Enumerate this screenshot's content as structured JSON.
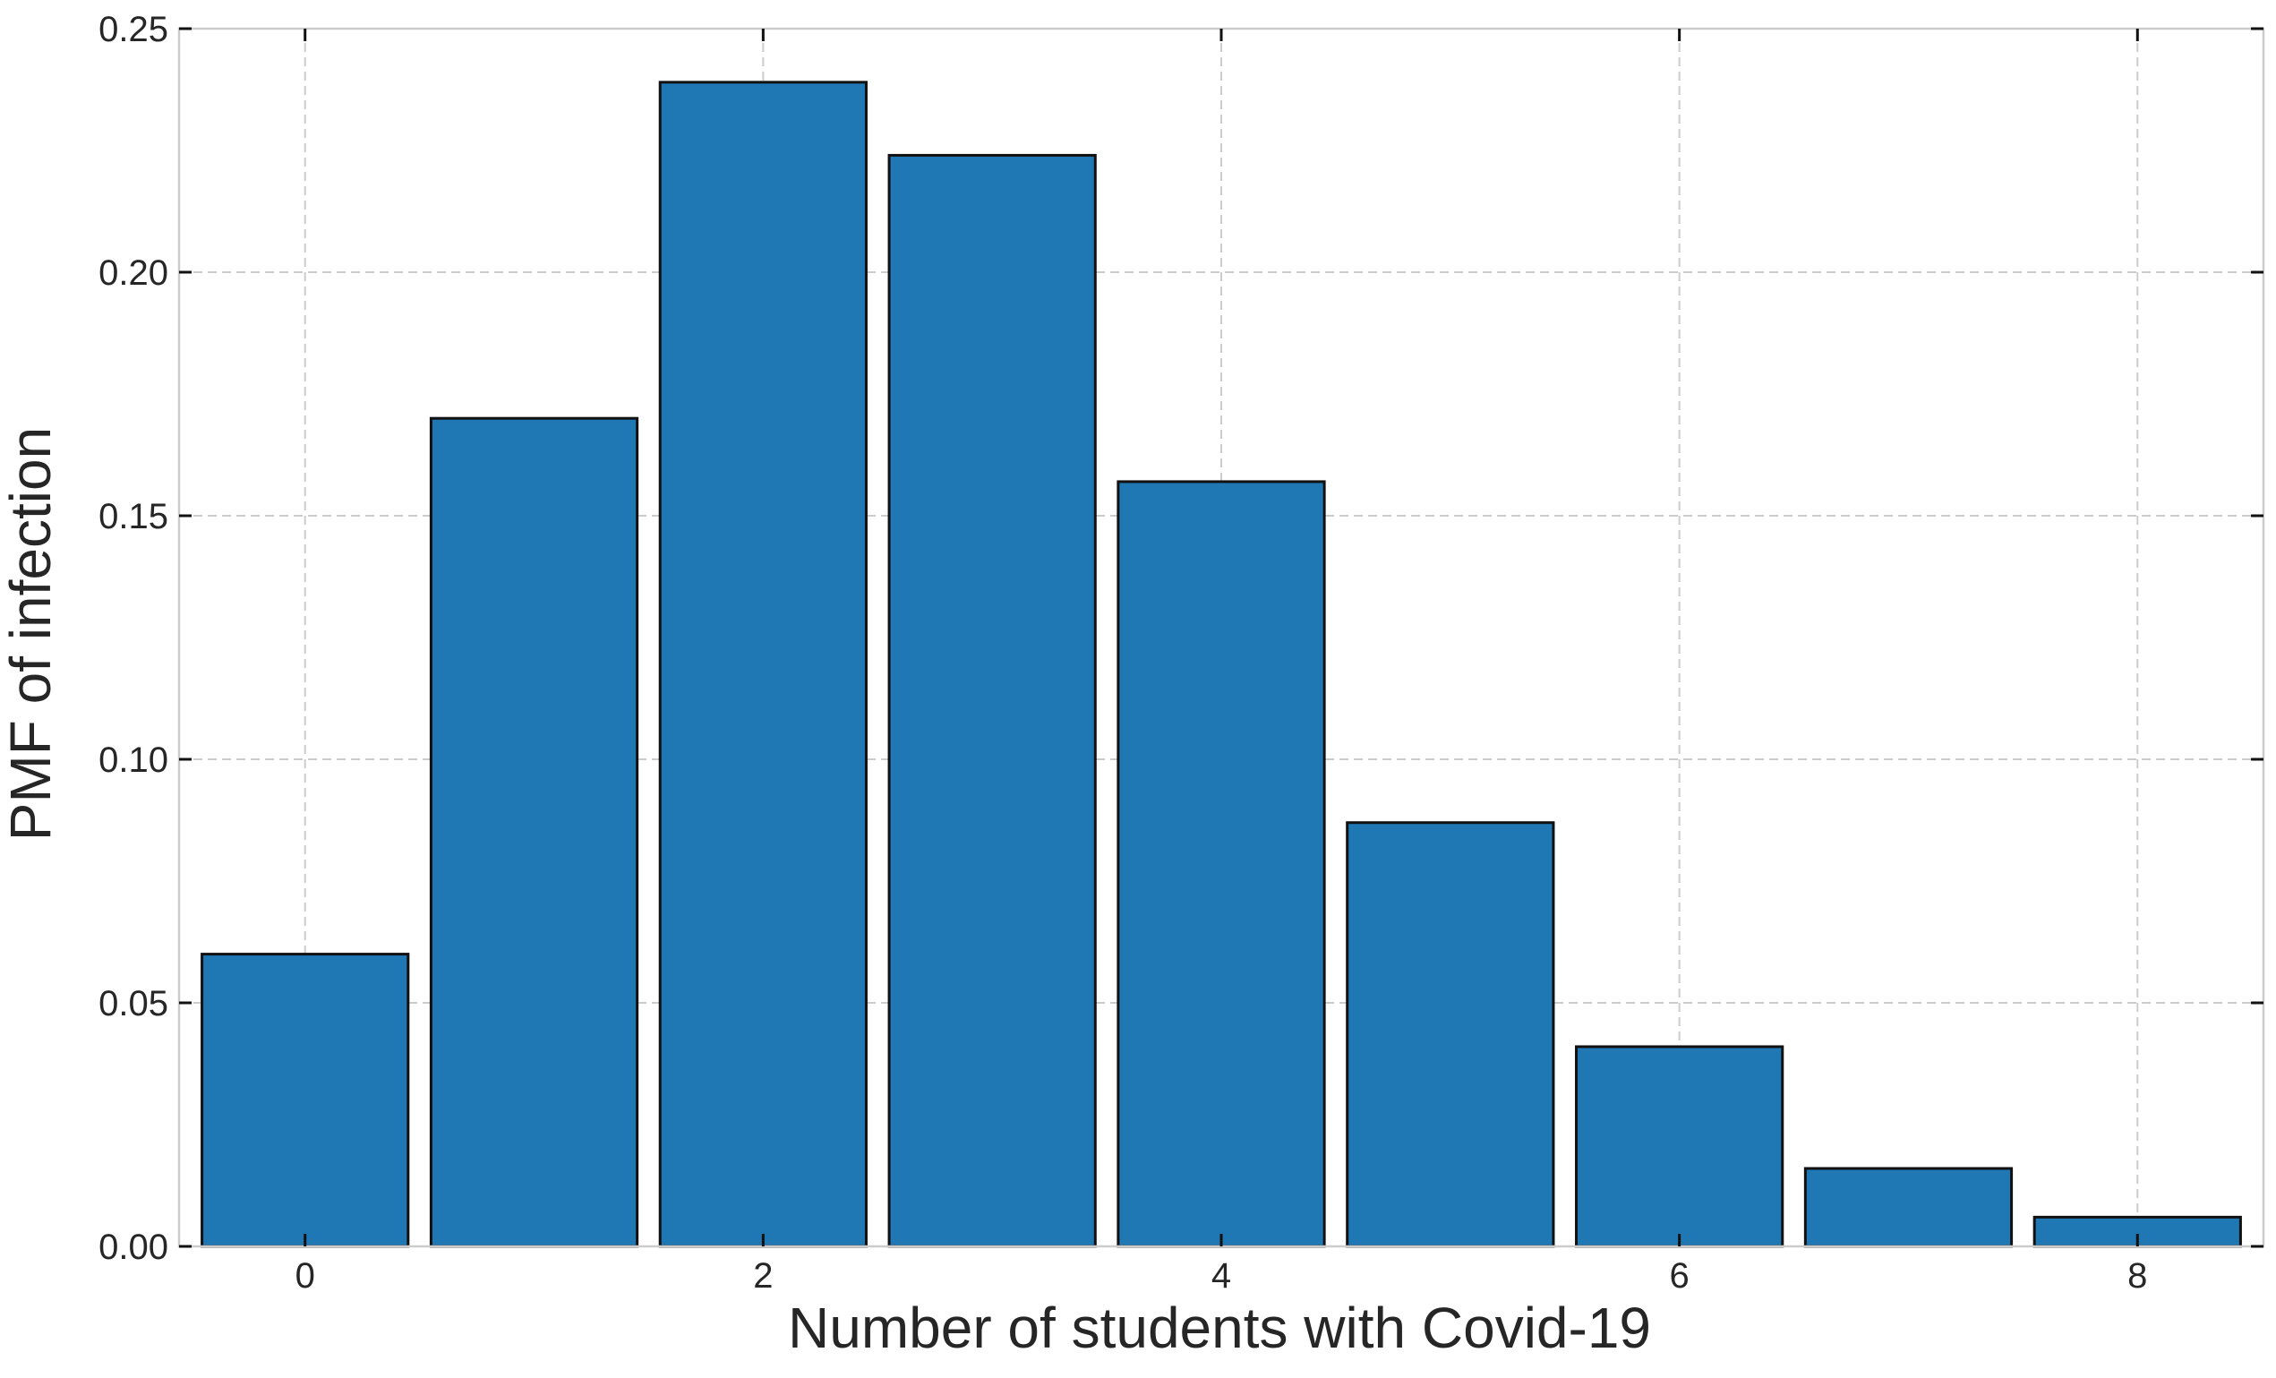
{
  "chart_data": {
    "type": "bar",
    "xlabel": "Number of students with Covid-19",
    "ylabel": "PMF of infection",
    "x": [
      0,
      1,
      2,
      3,
      4,
      5,
      6,
      7,
      8
    ],
    "values": [
      0.06,
      0.17,
      0.239,
      0.224,
      0.157,
      0.087,
      0.041,
      0.016,
      0.006
    ],
    "xlim": [
      -0.55,
      8.55
    ],
    "ylim": [
      0,
      0.25
    ],
    "xticks": [
      0,
      2,
      4,
      6,
      8
    ],
    "xtick_labels": [
      "0",
      "2",
      "4",
      "6",
      "8"
    ],
    "yticks": [
      0,
      0.05,
      0.1,
      0.15,
      0.2,
      0.25
    ],
    "ytick_labels": [
      "0.00",
      "0.05",
      "0.10",
      "0.15",
      "0.20",
      "0.25"
    ],
    "bar_color": "#1f77b4",
    "edge_color": "#111111",
    "grid": true,
    "legend": "none"
  }
}
